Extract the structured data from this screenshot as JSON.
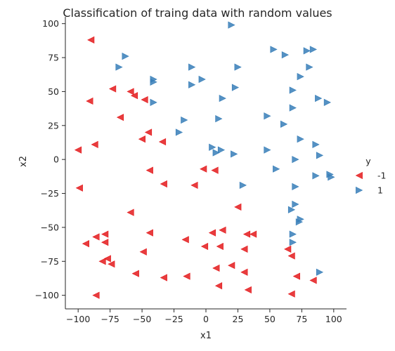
{
  "chart_data": {
    "type": "scatter",
    "title": "Classification of traing data with random values",
    "xlabel": "x1",
    "ylabel": "x2",
    "xlim": [
      -110,
      110
    ],
    "ylim": [
      -110,
      105
    ],
    "xticks": [
      -100,
      -75,
      -50,
      -25,
      0,
      25,
      50,
      75,
      100
    ],
    "yticks": [
      -100,
      -75,
      -50,
      -25,
      0,
      25,
      50,
      75,
      100
    ],
    "xtick_labels": [
      "−100",
      "−75",
      "−50",
      "−25",
      "0",
      "25",
      "50",
      "75",
      "100"
    ],
    "ytick_labels": [
      "−100",
      "−75",
      "−50",
      "−25",
      "0",
      "25",
      "50",
      "75",
      "100"
    ],
    "grid": false,
    "legend": {
      "title": "y",
      "placement": "right",
      "entries": [
        {
          "label": "-1",
          "marker": "triangle-left",
          "color": "#e41a1c"
        },
        {
          "label": "1",
          "marker": "triangle-right",
          "color": "#377eb8"
        }
      ]
    },
    "series": [
      {
        "name": "-1",
        "marker": "triangle-left",
        "color": "#e41a1c",
        "points": [
          [
            -90,
            88
          ],
          [
            -73,
            52
          ],
          [
            -59,
            50
          ],
          [
            -56,
            47
          ],
          [
            -48,
            44
          ],
          [
            -91,
            43
          ],
          [
            -67,
            31
          ],
          [
            -45,
            20
          ],
          [
            -50,
            15
          ],
          [
            -34,
            13
          ],
          [
            -87,
            11
          ],
          [
            -100,
            7
          ],
          [
            -44,
            -8
          ],
          [
            -2,
            -7
          ],
          [
            7,
            -8
          ],
          [
            -33,
            -18
          ],
          [
            -9,
            -19
          ],
          [
            -99,
            -21
          ],
          [
            25,
            -35
          ],
          [
            -59,
            -39
          ],
          [
            -44,
            -54
          ],
          [
            5,
            -54
          ],
          [
            13,
            -52
          ],
          [
            32,
            -55
          ],
          [
            37,
            -55
          ],
          [
            -16,
            -59
          ],
          [
            -79,
            -55
          ],
          [
            -86,
            -57
          ],
          [
            -94,
            -62
          ],
          [
            -79,
            -61
          ],
          [
            -1,
            -64
          ],
          [
            11,
            -64
          ],
          [
            30,
            -66
          ],
          [
            64,
            -66
          ],
          [
            -49,
            -68
          ],
          [
            67,
            -71
          ],
          [
            -77,
            -73
          ],
          [
            -81,
            -75
          ],
          [
            -74,
            -77
          ],
          [
            20,
            -78
          ],
          [
            8,
            -80
          ],
          [
            30,
            -83
          ],
          [
            -55,
            -84
          ],
          [
            -15,
            -86
          ],
          [
            71,
            -86
          ],
          [
            -33,
            -87
          ],
          [
            84,
            -89
          ],
          [
            10,
            -93
          ],
          [
            33,
            -96
          ],
          [
            -86,
            -100
          ],
          [
            67,
            -99
          ]
        ]
      },
      {
        "name": "1",
        "marker": "triangle-right",
        "color": "#377eb8",
        "points": [
          [
            20,
            99
          ],
          [
            53,
            81
          ],
          [
            62,
            77
          ],
          [
            79,
            80
          ],
          [
            84,
            81
          ],
          [
            -63,
            76
          ],
          [
            -68,
            68
          ],
          [
            -11,
            68
          ],
          [
            25,
            68
          ],
          [
            81,
            68
          ],
          [
            74,
            61
          ],
          [
            -41,
            59
          ],
          [
            -41,
            57
          ],
          [
            -11,
            55
          ],
          [
            -3,
            59
          ],
          [
            23,
            53
          ],
          [
            68,
            51
          ],
          [
            13,
            45
          ],
          [
            88,
            45
          ],
          [
            95,
            42
          ],
          [
            -41,
            42
          ],
          [
            68,
            38
          ],
          [
            48,
            32
          ],
          [
            10,
            30
          ],
          [
            -17,
            29
          ],
          [
            61,
            26
          ],
          [
            -21,
            20
          ],
          [
            74,
            15
          ],
          [
            86,
            11
          ],
          [
            5,
            9
          ],
          [
            8,
            5
          ],
          [
            12,
            7
          ],
          [
            22,
            4
          ],
          [
            48,
            7
          ],
          [
            70,
            0
          ],
          [
            89,
            3
          ],
          [
            55,
            -7
          ],
          [
            97,
            -11
          ],
          [
            98,
            -13
          ],
          [
            86,
            -12
          ],
          [
            29,
            -19
          ],
          [
            70,
            -20
          ],
          [
            70,
            -33
          ],
          [
            67,
            -37
          ],
          [
            74,
            -44
          ],
          [
            73,
            -46
          ],
          [
            68,
            -55
          ],
          [
            68,
            -61
          ],
          [
            89,
            -83
          ]
        ]
      }
    ]
  }
}
